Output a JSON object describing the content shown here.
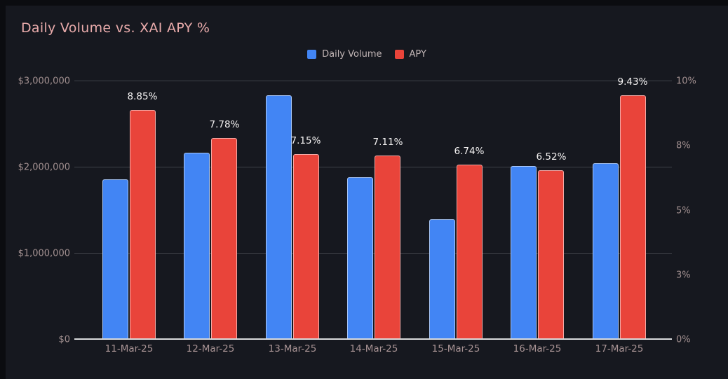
{
  "header": {
    "title_color": "#e9abab"
  },
  "colors": {
    "background": "#0b0c10",
    "panel": "#16181f",
    "grid": "#3e4148",
    "axis_line": "#d9dadc",
    "tick_label": "#a29090",
    "data_label": "#f5f3f3",
    "volume_blue": "#4285f4",
    "apy_red": "#e9443a"
  },
  "chart_data": {
    "type": "bar",
    "title": "Daily Volume vs. XAI APY %",
    "categories": [
      "11-Mar-25",
      "12-Mar-25",
      "13-Mar-25",
      "14-Mar-25",
      "15-Mar-25",
      "16-Mar-25",
      "17-Mar-25"
    ],
    "series": [
      {
        "name": "Daily Volume",
        "axis": "left",
        "color": "#4285f4",
        "values": [
          1850000,
          2160000,
          2830000,
          1875000,
          1390000,
          2010000,
          2040000
        ]
      },
      {
        "name": "APY",
        "axis": "right",
        "color": "#e9443a",
        "values": [
          8.85,
          7.78,
          7.15,
          7.11,
          6.74,
          6.52,
          9.43
        ],
        "data_labels": [
          "8.85%",
          "7.78%",
          "7.15%",
          "7.11%",
          "6.74%",
          "6.52%",
          "9.43%"
        ]
      }
    ],
    "left_axis": {
      "min": 0,
      "max": 3000000,
      "ticks": [
        {
          "value": 0,
          "label": "$0"
        },
        {
          "value": 1000000,
          "label": "$1,000,000"
        },
        {
          "value": 2000000,
          "label": "$2,000,000"
        },
        {
          "value": 3000000,
          "label": "$3,000,000"
        }
      ]
    },
    "right_axis": {
      "min": 0,
      "max": 10,
      "ticks": [
        {
          "value": 0,
          "label": "0%"
        },
        {
          "value": 2.5,
          "label": "3%"
        },
        {
          "value": 5,
          "label": "5%"
        },
        {
          "value": 7.5,
          "label": "8%"
        },
        {
          "value": 10,
          "label": "10%"
        }
      ]
    },
    "grid": true,
    "legend_position": "top"
  }
}
